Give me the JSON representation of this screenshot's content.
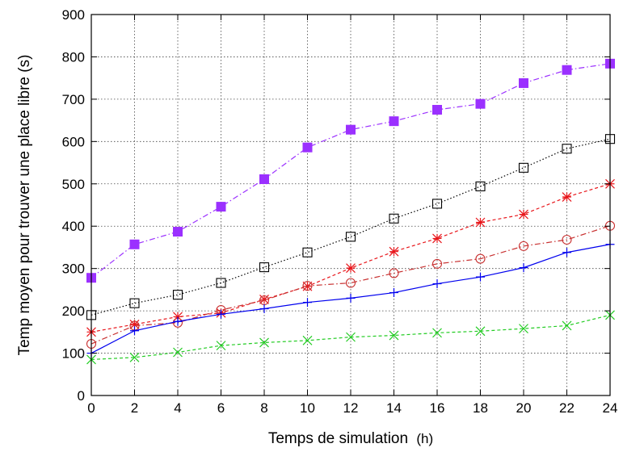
{
  "chart_data": {
    "type": "line",
    "xlabel": "Temps de simulation",
    "xlabel_unit": "(h)",
    "ylabel": "Temp moyen pour trouver une place libre (s)",
    "xlim": [
      0,
      24
    ],
    "ylim": [
      0,
      900
    ],
    "x_ticks": [
      "0",
      "2",
      "4",
      "6",
      "8",
      "10",
      "12",
      "14",
      "16",
      "18",
      "20",
      "22",
      "24"
    ],
    "y_ticks": [
      "0",
      "100",
      "200",
      "300",
      "400",
      "500",
      "600",
      "700",
      "800",
      "900"
    ],
    "grid": true,
    "legend": "none",
    "x": [
      0,
      2,
      4,
      6,
      8,
      10,
      12,
      14,
      16,
      18,
      20,
      22,
      24
    ],
    "series": [
      {
        "marker": "filled-square",
        "color": "#9b30ff",
        "line_style": "dash-dot",
        "values": [
          278,
          357,
          387,
          446,
          511,
          586,
          628,
          648,
          675,
          689,
          738,
          769,
          784
        ]
      },
      {
        "marker": "open-square",
        "color": "#000000",
        "line_style": "dotted",
        "values": [
          190,
          218,
          238,
          266,
          303,
          338,
          375,
          418,
          453,
          494,
          538,
          583,
          606
        ]
      },
      {
        "marker": "star",
        "color": "#e8151a",
        "line_style": "dashed",
        "values": [
          150,
          168,
          186,
          195,
          227,
          258,
          301,
          340,
          371,
          409,
          428,
          469,
          500
        ]
      },
      {
        "marker": "open-circle",
        "color": "#c83030",
        "line_style": "dash-dot",
        "values": [
          122,
          165,
          172,
          202,
          225,
          259,
          266,
          289,
          311,
          323,
          353,
          368,
          401
        ]
      },
      {
        "marker": "plus",
        "color": "#0000ee",
        "line_style": "solid",
        "values": [
          100,
          153,
          175,
          192,
          205,
          220,
          230,
          243,
          264,
          280,
          302,
          338,
          357
        ]
      },
      {
        "marker": "cross",
        "color": "#22cc22",
        "line_style": "dashed",
        "values": [
          85,
          90,
          102,
          118,
          125,
          130,
          138,
          142,
          148,
          152,
          158,
          165,
          190
        ]
      }
    ]
  }
}
